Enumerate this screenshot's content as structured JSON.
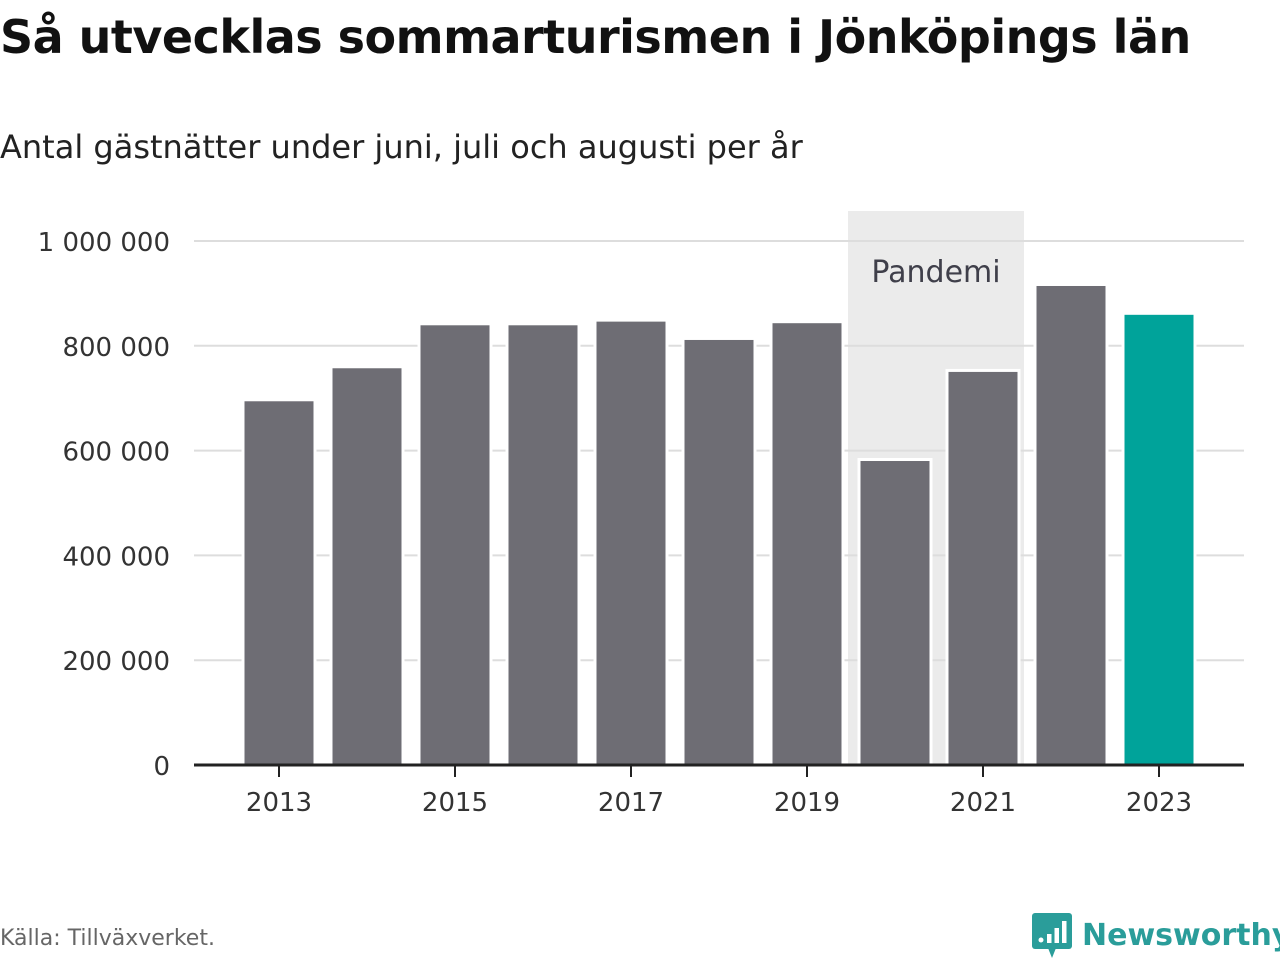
{
  "header": {
    "title": "Så utvecklas sommarturismen i Jönköpings län",
    "subtitle": "Antal gästnätter under juni, juli och augusti per år"
  },
  "footer": {
    "source": "Källa: Tillväxverket.",
    "brand": "Newsworthy"
  },
  "colors": {
    "bar": "#6e6d74",
    "highlight": "#00a39a",
    "band": "#ebebeb",
    "grid": "#dddddd",
    "axis": "#222222",
    "brand": "#2a9d9a"
  },
  "chart_data": {
    "type": "bar",
    "categories": [
      "2013",
      "2014",
      "2015",
      "2016",
      "2017",
      "2018",
      "2019",
      "2020",
      "2021",
      "2022",
      "2023"
    ],
    "values": [
      697000,
      760000,
      842000,
      842000,
      849000,
      814000,
      846000,
      583000,
      753000,
      917000,
      862000
    ],
    "highlight_category": "2023",
    "xtick_labels": [
      "2013",
      "2015",
      "2017",
      "2019",
      "2021",
      "2023"
    ],
    "ylim": [
      0,
      1000000
    ],
    "yticks": [
      0,
      200000,
      400000,
      600000,
      800000,
      1000000
    ],
    "ytick_labels": [
      "0",
      "200 000",
      "400 000",
      "600 000",
      "800 000",
      "1 000 000"
    ],
    "annotation": {
      "label": "Pandemi",
      "categories": [
        "2020",
        "2021"
      ]
    },
    "grid": true,
    "legend": "none"
  }
}
